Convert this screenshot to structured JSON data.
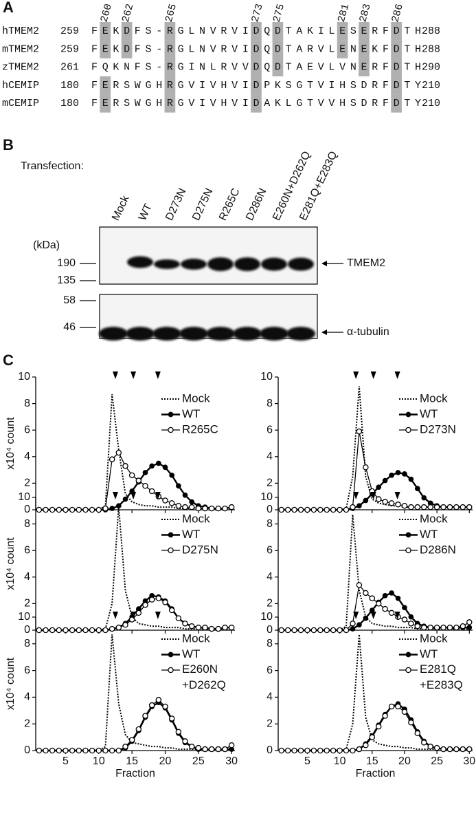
{
  "panel_a": {
    "label": "A",
    "positions": [
      260,
      262,
      265,
      273,
      275,
      281,
      283,
      286
    ],
    "rows": [
      {
        "name": "hTMEM2",
        "start": 259,
        "sequence": "FEKDFS-RGLNVRVIDQDTAKILESERFDTH",
        "end": 288
      },
      {
        "name": "mTMEM2",
        "start": 259,
        "sequence": "FEKDFS-RGLNVRVIDQDTARVLENEKFDTH",
        "end": 288
      },
      {
        "name": "zTMEM2",
        "start": 261,
        "sequence": "FQKNFS-RGINLRVVDQDTAEVLVNERFDTH",
        "end": 290
      },
      {
        "name": "hCEMIP",
        "start": 180,
        "sequence": "FERSWGHRGVIVHVIDPKSGTVIHSDRFDTY",
        "end": 210
      },
      {
        "name": "mCEMIP",
        "start": 180,
        "sequence": "FERSWGHRGVIVHVIDAKLGTVVHSDRFDTY",
        "end": 210
      }
    ]
  },
  "panel_b": {
    "label": "B",
    "transfection_label": "Transfection:",
    "lanes": [
      "Mock",
      "WT",
      "D273N",
      "D275N",
      "R265C",
      "D286N",
      "E260N+D262Q",
      "E281Q+E283Q"
    ],
    "kda_label": "(kDa)",
    "blots": [
      {
        "markers": [
          190,
          135
        ],
        "target": "TMEM2"
      },
      {
        "markers": [
          58,
          46
        ],
        "target": "α-tubulin"
      }
    ]
  },
  "panel_c": {
    "label": "C"
  },
  "chart_data": [
    {
      "type": "line",
      "y_label": "x10⁴ count",
      "x": [
        1,
        2,
        3,
        4,
        5,
        6,
        7,
        8,
        9,
        10,
        11,
        12,
        13,
        14,
        15,
        16,
        17,
        18,
        19,
        20,
        21,
        22,
        23,
        24,
        25,
        26,
        27,
        28,
        29,
        30
      ],
      "xlim": [
        0.5,
        30.5
      ],
      "xticks": [
        5,
        10,
        15,
        20,
        25,
        30
      ],
      "ylim": [
        0,
        10
      ],
      "yticks": [
        0,
        2,
        4,
        6,
        8,
        10
      ],
      "arrowheads": [
        12.5,
        15.2,
        18.9
      ],
      "legend": "upper right",
      "series": [
        {
          "name": "Mock",
          "color": "#000000",
          "style": "dotted",
          "marker": "none",
          "values": [
            0,
            0,
            0,
            0,
            0,
            0,
            0,
            0,
            0,
            0,
            0.3,
            8.7,
            4.5,
            1.2,
            0.6,
            0.4,
            0.3,
            0.3,
            0.2,
            0.2,
            0.2,
            0.1,
            0.1,
            0.1,
            0.1,
            0.1,
            0.1,
            0.1,
            0.1,
            0.1
          ]
        },
        {
          "name": "WT",
          "color": "#000000",
          "style": "solid",
          "marker": "filled",
          "values": [
            0,
            0,
            0,
            0,
            0,
            0,
            0,
            0,
            0,
            0,
            0,
            0.1,
            0.3,
            0.8,
            1.4,
            2.1,
            2.8,
            3.3,
            3.5,
            3.2,
            2.6,
            1.8,
            1.1,
            0.6,
            0.3,
            0.2,
            0.1,
            0.1,
            0.1,
            0.2
          ]
        },
        {
          "name": "R265C",
          "color": "#000000",
          "style": "thin",
          "marker": "open",
          "values": [
            0,
            0,
            0,
            0,
            0,
            0,
            0,
            0,
            0,
            0,
            0.1,
            3.8,
            4.3,
            3.3,
            2.6,
            2.2,
            1.8,
            1.4,
            1.0,
            0.7,
            0.5,
            0.3,
            0.2,
            0.2,
            0.1,
            0.1,
            0.1,
            0.1,
            0.1,
            0.2
          ]
        }
      ]
    },
    {
      "type": "line",
      "x": [
        1,
        2,
        3,
        4,
        5,
        6,
        7,
        8,
        9,
        10,
        11,
        12,
        13,
        14,
        15,
        16,
        17,
        18,
        19,
        20,
        21,
        22,
        23,
        24,
        25,
        26,
        27,
        28,
        29,
        30
      ],
      "xlim": [
        0.5,
        30.5
      ],
      "xticks": [
        5,
        10,
        15,
        20,
        25,
        30
      ],
      "ylim": [
        0,
        10
      ],
      "yticks": [
        0,
        2,
        4,
        6,
        8,
        10
      ],
      "arrowheads": [
        12.5,
        15.2,
        18.9
      ],
      "legend": "upper right",
      "series": [
        {
          "name": "Mock",
          "color": "#000000",
          "style": "dotted",
          "marker": "none",
          "values": [
            0,
            0,
            0,
            0,
            0,
            0,
            0,
            0,
            0,
            0,
            0.1,
            2.5,
            9.3,
            2.5,
            0.8,
            0.5,
            0.4,
            0.3,
            0.3,
            0.2,
            0.2,
            0.2,
            0.2,
            0.2,
            0.2,
            0.2,
            0.2,
            0.2,
            0.2,
            0.2
          ]
        },
        {
          "name": "WT",
          "color": "#000000",
          "style": "solid",
          "marker": "filled",
          "values": [
            0,
            0,
            0,
            0,
            0,
            0,
            0,
            0,
            0,
            0,
            0,
            0.1,
            0.3,
            0.7,
            1.2,
            1.7,
            2.2,
            2.6,
            2.8,
            2.7,
            2.3,
            1.6,
            0.9,
            0.5,
            0.3,
            0.2,
            0.2,
            0.2,
            0.2,
            0.2
          ]
        },
        {
          "name": "D273N",
          "color": "#000000",
          "style": "thin",
          "marker": "open",
          "values": [
            0,
            0,
            0,
            0,
            0,
            0,
            0,
            0,
            0,
            0,
            0,
            0.2,
            5.9,
            3.2,
            1.4,
            0.8,
            0.6,
            0.5,
            0.4,
            0.3,
            0.2,
            0.2,
            0.2,
            0.2,
            0.2,
            0.2,
            0.2,
            0.2,
            0.2,
            0.2
          ]
        }
      ]
    },
    {
      "type": "line",
      "y_label": "x10⁴ count",
      "x": [
        1,
        2,
        3,
        4,
        5,
        6,
        7,
        8,
        9,
        10,
        11,
        12,
        13,
        14,
        15,
        16,
        17,
        18,
        19,
        20,
        21,
        22,
        23,
        24,
        25,
        26,
        27,
        28,
        29,
        30
      ],
      "xlim": [
        0.5,
        30.5
      ],
      "xticks": [
        5,
        10,
        15,
        20,
        25,
        30
      ],
      "ylim": [
        0,
        10
      ],
      "yticks": [
        0,
        2,
        4,
        6,
        8,
        10
      ],
      "arrowheads": [
        12.5,
        15.2,
        18.9
      ],
      "legend": "upper right",
      "series": [
        {
          "name": "Mock",
          "color": "#000000",
          "style": "dotted",
          "marker": "none",
          "values": [
            0,
            0,
            0,
            0,
            0,
            0,
            0,
            0,
            0,
            0,
            0.1,
            2.0,
            9.3,
            3.0,
            1.0,
            0.5,
            0.4,
            0.3,
            0.3,
            0.2,
            0.2,
            0.2,
            0.1,
            0.1,
            0.1,
            0.1,
            0.1,
            0.1,
            0.1,
            0.1
          ]
        },
        {
          "name": "WT",
          "color": "#000000",
          "style": "solid",
          "marker": "filled",
          "values": [
            0,
            0,
            0,
            0,
            0,
            0,
            0,
            0,
            0,
            0,
            0,
            0.1,
            0.2,
            0.5,
            1.0,
            1.6,
            2.2,
            2.6,
            2.5,
            2.2,
            1.6,
            0.9,
            0.5,
            0.3,
            0.2,
            0.2,
            0.1,
            0.1,
            0.2,
            0.2
          ]
        },
        {
          "name": "D275N",
          "color": "#000000",
          "style": "thin",
          "marker": "open",
          "values": [
            0,
            0,
            0,
            0,
            0,
            0,
            0,
            0,
            0,
            0,
            0,
            0.1,
            0.2,
            0.4,
            0.8,
            1.3,
            1.9,
            2.3,
            2.4,
            2.1,
            1.5,
            0.9,
            0.5,
            0.3,
            0.2,
            0.2,
            0.1,
            0.1,
            0.2,
            0.2
          ]
        }
      ]
    },
    {
      "type": "line",
      "x": [
        1,
        2,
        3,
        4,
        5,
        6,
        7,
        8,
        9,
        10,
        11,
        12,
        13,
        14,
        15,
        16,
        17,
        18,
        19,
        20,
        21,
        22,
        23,
        24,
        25,
        26,
        27,
        28,
        29,
        30
      ],
      "xlim": [
        0.5,
        30.5
      ],
      "xticks": [
        5,
        10,
        15,
        20,
        25,
        30
      ],
      "ylim": [
        0,
        10
      ],
      "yticks": [
        0,
        2,
        4,
        6,
        8,
        10
      ],
      "arrowheads": [
        12.5,
        15.2,
        18.9
      ],
      "legend": "upper right",
      "series": [
        {
          "name": "Mock",
          "color": "#000000",
          "style": "dotted",
          "marker": "none",
          "values": [
            0,
            0,
            0,
            0,
            0,
            0,
            0,
            0,
            0,
            0,
            0.3,
            8.7,
            3.0,
            1.0,
            0.5,
            0.4,
            0.3,
            0.3,
            0.2,
            0.2,
            0.2,
            0.1,
            0.1,
            0.1,
            0.1,
            0.1,
            0.1,
            0.1,
            0.1,
            0.1
          ]
        },
        {
          "name": "WT",
          "color": "#000000",
          "style": "solid",
          "marker": "filled",
          "values": [
            0,
            0,
            0,
            0,
            0,
            0,
            0,
            0,
            0,
            0,
            0,
            0.1,
            0.4,
            0.9,
            1.5,
            2.1,
            2.6,
            2.8,
            2.4,
            1.7,
            1.0,
            0.5,
            0.3,
            0.2,
            0.2,
            0.2,
            0.2,
            0.2,
            0.2,
            0.2
          ]
        },
        {
          "name": "D286N",
          "color": "#000000",
          "style": "thin",
          "marker": "open",
          "values": [
            0,
            0,
            0,
            0,
            0,
            0,
            0,
            0,
            0,
            0,
            0,
            0.5,
            3.4,
            2.8,
            2.4,
            2.0,
            1.6,
            1.3,
            1.0,
            0.8,
            0.5,
            0.3,
            0.2,
            0.2,
            0.2,
            0.2,
            0.2,
            0.2,
            0.3,
            0.6
          ]
        }
      ]
    },
    {
      "type": "line",
      "y_label": "x10⁴ count",
      "x_label": "Fraction",
      "x": [
        1,
        2,
        3,
        4,
        5,
        6,
        7,
        8,
        9,
        10,
        11,
        12,
        13,
        14,
        15,
        16,
        17,
        18,
        19,
        20,
        21,
        22,
        23,
        24,
        25,
        26,
        27,
        28,
        29,
        30
      ],
      "xlim": [
        0.5,
        30.5
      ],
      "xticks": [
        5,
        10,
        15,
        20,
        25,
        30
      ],
      "ylim": [
        0,
        10
      ],
      "yticks": [
        0,
        2,
        4,
        6,
        8,
        10
      ],
      "arrowheads": [
        12.5,
        15.2,
        18.9
      ],
      "legend": "upper right",
      "series": [
        {
          "name": "Mock",
          "color": "#000000",
          "style": "dotted",
          "marker": "none",
          "values": [
            0,
            0,
            0,
            0,
            0,
            0,
            0,
            0,
            0,
            0,
            0.3,
            8.7,
            3.5,
            1.2,
            0.6,
            0.5,
            0.4,
            0.3,
            0.3,
            0.2,
            0.2,
            0.1,
            0.1,
            0.1,
            0.1,
            0.1,
            0.1,
            0.1,
            0.1,
            0.1
          ]
        },
        {
          "name": "WT",
          "color": "#000000",
          "style": "solid",
          "marker": "filled",
          "values": [
            0,
            0,
            0,
            0,
            0,
            0,
            0,
            0,
            0,
            0,
            0,
            0,
            0,
            0.2,
            0.7,
            1.5,
            2.5,
            3.3,
            3.6,
            3.2,
            2.3,
            1.3,
            0.6,
            0.3,
            0.1,
            0.1,
            0.1,
            0.1,
            0.1,
            0.1
          ]
        },
        {
          "name": "E260N\n+D262Q",
          "color": "#000000",
          "style": "thin",
          "marker": "open",
          "values": [
            0,
            0,
            0,
            0,
            0,
            0,
            0,
            0,
            0,
            0,
            0,
            0,
            0,
            0.3,
            0.8,
            1.6,
            2.6,
            3.4,
            3.8,
            3.3,
            2.4,
            1.4,
            0.7,
            0.3,
            0.2,
            0.1,
            0.1,
            0.1,
            0.1,
            0.4
          ]
        }
      ]
    },
    {
      "type": "line",
      "x_label": "Fraction",
      "x": [
        1,
        2,
        3,
        4,
        5,
        6,
        7,
        8,
        9,
        10,
        11,
        12,
        13,
        14,
        15,
        16,
        17,
        18,
        19,
        20,
        21,
        22,
        23,
        24,
        25,
        26,
        27,
        28,
        29,
        30
      ],
      "xlim": [
        0.5,
        30.5
      ],
      "xticks": [
        5,
        10,
        15,
        20,
        25,
        30
      ],
      "ylim": [
        0,
        10
      ],
      "yticks": [
        0,
        2,
        4,
        6,
        8,
        10
      ],
      "arrowheads": [
        12.5,
        15.2,
        18.9
      ],
      "legend": "upper right",
      "series": [
        {
          "name": "Mock",
          "color": "#000000",
          "style": "dotted",
          "marker": "none",
          "values": [
            0,
            0,
            0,
            0,
            0,
            0,
            0,
            0,
            0,
            0,
            0.1,
            2.0,
            8.7,
            2.5,
            0.8,
            0.5,
            0.4,
            0.3,
            0.3,
            0.2,
            0.2,
            0.1,
            0.1,
            0.1,
            0.1,
            0.1,
            0.1,
            0.1,
            0.1,
            0.1
          ]
        },
        {
          "name": "WT",
          "color": "#000000",
          "style": "solid",
          "marker": "filled",
          "values": [
            0,
            0,
            0,
            0,
            0,
            0,
            0,
            0,
            0,
            0,
            0,
            0,
            0.1,
            0.5,
            1.1,
            1.9,
            2.7,
            3.3,
            3.5,
            3.1,
            2.3,
            1.4,
            0.7,
            0.3,
            0.2,
            0.1,
            0.1,
            0.1,
            0.1,
            0.1
          ]
        },
        {
          "name": "E281Q\n+E283Q",
          "color": "#000000",
          "style": "thin",
          "marker": "open",
          "values": [
            0,
            0,
            0,
            0,
            0,
            0,
            0,
            0,
            0,
            0,
            0,
            0,
            0.1,
            0.4,
            1.0,
            1.8,
            2.6,
            3.3,
            3.3,
            2.9,
            2.1,
            1.3,
            0.6,
            0.3,
            0.2,
            0.1,
            0.1,
            0.1,
            0.1,
            0.1
          ]
        }
      ]
    }
  ]
}
